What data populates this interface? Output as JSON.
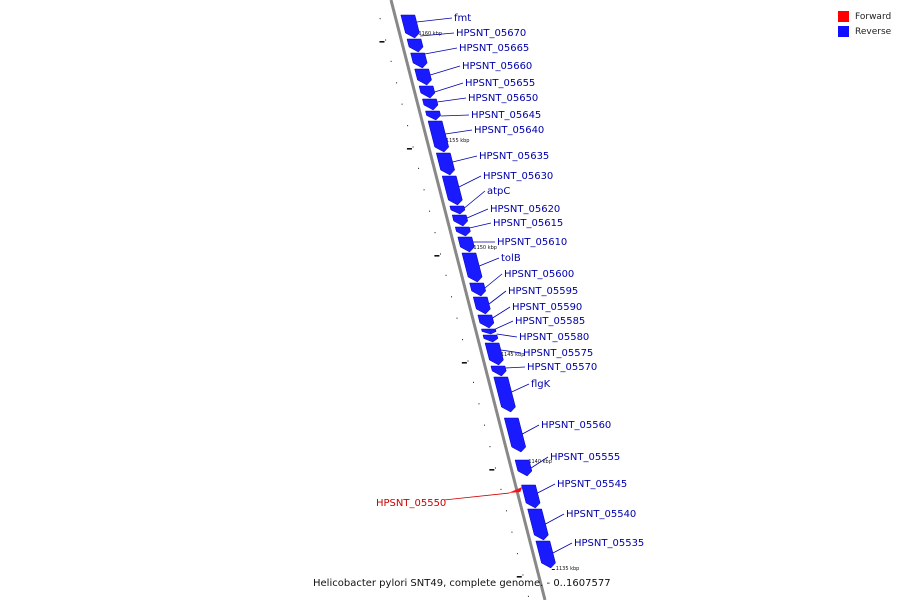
{
  "legend": {
    "forward": {
      "label": "Forward",
      "color": "#ff0000"
    },
    "reverse": {
      "label": "Reverse",
      "color": "#1010ff"
    }
  },
  "caption": "Helicobacter pylori SNT49, complete genome. - 0..1607577",
  "colors": {
    "backbone": "#888888",
    "forward_label": "#cc0000",
    "reverse_label": "#0000aa",
    "reverse_fill": "#1a1aff",
    "forward_fill": "#ff1010"
  },
  "ticks": [
    {
      "label": "1160 kbp",
      "kbp": 1160
    },
    {
      "label": "1155 kbp",
      "kbp": 1155
    },
    {
      "label": "1150 kbp",
      "kbp": 1150
    },
    {
      "label": "1145 kbp",
      "kbp": 1145
    },
    {
      "label": "1140 kbp",
      "kbp": 1140
    },
    {
      "label": "1135 kbp",
      "kbp": 1135
    }
  ],
  "genes": [
    {
      "name": "fmt",
      "strand": "reverse"
    },
    {
      "name": "HPSNT_05670",
      "strand": "reverse"
    },
    {
      "name": "HPSNT_05665",
      "strand": "reverse"
    },
    {
      "name": "HPSNT_05660",
      "strand": "reverse"
    },
    {
      "name": "HPSNT_05655",
      "strand": "reverse"
    },
    {
      "name": "HPSNT_05650",
      "strand": "reverse"
    },
    {
      "name": "HPSNT_05645",
      "strand": "reverse"
    },
    {
      "name": "HPSNT_05640",
      "strand": "reverse"
    },
    {
      "name": "HPSNT_05635",
      "strand": "reverse"
    },
    {
      "name": "HPSNT_05630",
      "strand": "reverse"
    },
    {
      "name": "atpC",
      "strand": "reverse"
    },
    {
      "name": "HPSNT_05620",
      "strand": "reverse"
    },
    {
      "name": "HPSNT_05615",
      "strand": "reverse"
    },
    {
      "name": "HPSNT_05610",
      "strand": "reverse"
    },
    {
      "name": "tolB",
      "strand": "reverse"
    },
    {
      "name": "HPSNT_05600",
      "strand": "reverse"
    },
    {
      "name": "HPSNT_05595",
      "strand": "reverse"
    },
    {
      "name": "HPSNT_05590",
      "strand": "reverse"
    },
    {
      "name": "HPSNT_05585",
      "strand": "reverse"
    },
    {
      "name": "HPSNT_05580",
      "strand": "reverse"
    },
    {
      "name": "HPSNT_05575",
      "strand": "reverse"
    },
    {
      "name": "HPSNT_05570",
      "strand": "reverse"
    },
    {
      "name": "flgK",
      "strand": "reverse"
    },
    {
      "name": "HPSNT_05560",
      "strand": "reverse"
    },
    {
      "name": "HPSNT_05555",
      "strand": "reverse"
    },
    {
      "name": "HPSNT_05550",
      "strand": "forward"
    },
    {
      "name": "HPSNT_05545",
      "strand": "reverse"
    },
    {
      "name": "HPSNT_05540",
      "strand": "reverse"
    },
    {
      "name": "HPSNT_05535",
      "strand": "reverse"
    }
  ]
}
